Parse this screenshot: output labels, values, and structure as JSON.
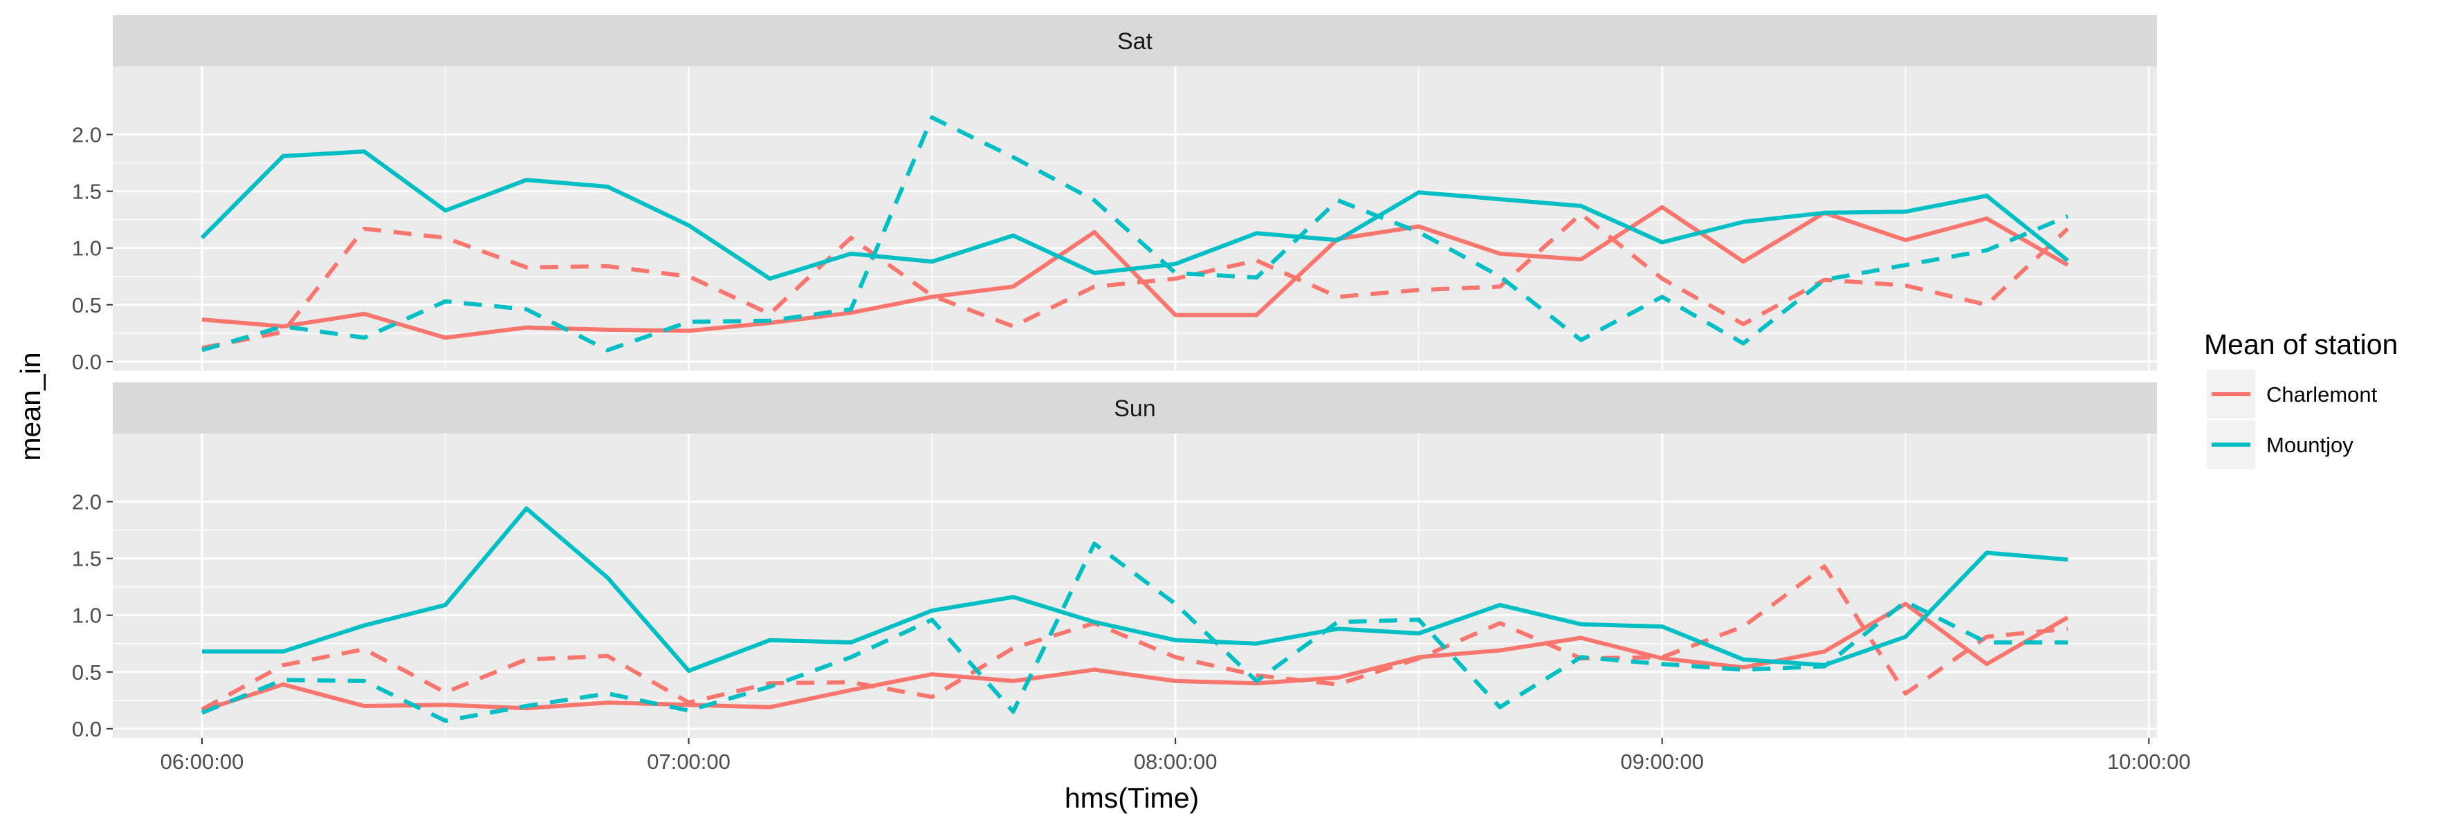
{
  "chart_data": {
    "type": "line",
    "xlabel": "hms(Time)",
    "ylabel": "mean_in",
    "xlim": [
      "05:49:00",
      "10:01:00"
    ],
    "x_ticks": [
      "06:00:00",
      "07:00:00",
      "08:00:00",
      "09:00:00",
      "10:00:00"
    ],
    "x_ticks_min": [
      360,
      420,
      480,
      540,
      600
    ],
    "ylim": [
      -0.08,
      2.6
    ],
    "y_ticks": [
      "0.0",
      "0.5",
      "1.0",
      "1.5",
      "2.0"
    ],
    "y_ticks_val": [
      0,
      0.5,
      1.0,
      1.5,
      2.0
    ],
    "grid": true,
    "legend": {
      "title": "Mean of station",
      "position": "right",
      "entries": [
        {
          "name": "Charlemont",
          "color": "#F8766D"
        },
        {
          "name": "Mountjoy",
          "color": "#00BFC4"
        }
      ]
    },
    "panels": [
      {
        "label": "Sat",
        "series": [
          {
            "station": "Charlemont",
            "linetype": "solid",
            "color": "#F8766D",
            "x": [
              "06:00:00",
              "06:10:00",
              "06:20:00",
              "06:30:00",
              "06:40:00",
              "06:50:00",
              "07:00:00",
              "07:10:00",
              "07:20:00",
              "07:30:00",
              "07:40:00",
              "07:50:00",
              "08:00:00",
              "08:10:00",
              "08:20:00",
              "08:30:00",
              "08:40:00",
              "08:50:00",
              "09:00:00",
              "09:10:00",
              "09:20:00",
              "09:30:00",
              "09:40:00",
              "09:50:00"
            ],
            "y": [
              0.37,
              0.31,
              0.42,
              0.21,
              0.3,
              0.28,
              0.27,
              0.34,
              0.43,
              0.57,
              0.66,
              1.14,
              0.41,
              0.41,
              1.08,
              1.19,
              0.95,
              0.9,
              1.36,
              0.88,
              1.31,
              1.07,
              1.26,
              0.85
            ]
          },
          {
            "station": "Charlemont",
            "linetype": "dashed",
            "color": "#F8766D",
            "x": [
              "06:00:00",
              "06:10:00",
              "06:20:00",
              "06:30:00",
              "06:40:00",
              "06:50:00",
              "07:00:00",
              "07:10:00",
              "07:20:00",
              "07:30:00",
              "07:40:00",
              "07:50:00",
              "08:00:00",
              "08:10:00",
              "08:20:00",
              "08:30:00",
              "08:40:00",
              "08:50:00",
              "09:00:00",
              "09:10:00",
              "09:20:00",
              "09:30:00",
              "09:40:00",
              "09:50:00"
            ],
            "y": [
              0.12,
              0.26,
              1.17,
              1.09,
              0.83,
              0.84,
              0.75,
              0.42,
              1.09,
              0.58,
              0.31,
              0.66,
              0.73,
              0.89,
              0.57,
              0.63,
              0.66,
              1.3,
              0.73,
              0.33,
              0.72,
              0.67,
              0.5,
              1.17
            ]
          },
          {
            "station": "Mountjoy",
            "linetype": "solid",
            "color": "#00BFC4",
            "x": [
              "06:00:00",
              "06:10:00",
              "06:20:00",
              "06:30:00",
              "06:40:00",
              "06:50:00",
              "07:00:00",
              "07:10:00",
              "07:20:00",
              "07:30:00",
              "07:40:00",
              "07:50:00",
              "08:00:00",
              "08:10:00",
              "08:20:00",
              "08:30:00",
              "08:40:00",
              "08:50:00",
              "09:00:00",
              "09:10:00",
              "09:20:00",
              "09:30:00",
              "09:40:00",
              "09:50:00"
            ],
            "y": [
              1.09,
              1.81,
              1.85,
              1.33,
              1.6,
              1.54,
              1.2,
              0.73,
              0.95,
              0.88,
              1.11,
              0.78,
              0.86,
              1.13,
              1.07,
              1.49,
              1.43,
              1.37,
              1.05,
              1.23,
              1.31,
              1.32,
              1.46,
              0.89
            ]
          },
          {
            "station": "Mountjoy",
            "linetype": "dashed",
            "color": "#00BFC4",
            "x": [
              "06:00:00",
              "06:10:00",
              "06:20:00",
              "06:30:00",
              "06:40:00",
              "06:50:00",
              "07:00:00",
              "07:10:00",
              "07:20:00",
              "07:30:00",
              "07:40:00",
              "07:50:00",
              "08:00:00",
              "08:10:00",
              "08:20:00",
              "08:30:00",
              "08:40:00",
              "08:50:00",
              "09:00:00",
              "09:10:00",
              "09:20:00",
              "09:30:00",
              "09:40:00",
              "09:50:00"
            ],
            "y": [
              0.1,
              0.31,
              0.21,
              0.53,
              0.46,
              0.1,
              0.35,
              0.36,
              0.46,
              2.15,
              1.8,
              1.42,
              0.78,
              0.74,
              1.42,
              1.14,
              0.75,
              0.19,
              0.57,
              0.16,
              0.72,
              0.85,
              0.98,
              1.28
            ]
          }
        ]
      },
      {
        "label": "Sun",
        "series": [
          {
            "station": "Charlemont",
            "linetype": "solid",
            "color": "#F8766D",
            "x": [
              "06:00:00",
              "06:10:00",
              "06:20:00",
              "06:30:00",
              "06:40:00",
              "06:50:00",
              "07:00:00",
              "07:10:00",
              "07:20:00",
              "07:30:00",
              "07:40:00",
              "07:50:00",
              "08:00:00",
              "08:10:00",
              "08:20:00",
              "08:30:00",
              "08:40:00",
              "08:50:00",
              "09:00:00",
              "09:10:00",
              "09:20:00",
              "09:30:00",
              "09:40:00",
              "09:50:00"
            ],
            "y": [
              0.16,
              0.39,
              0.2,
              0.21,
              0.18,
              0.23,
              0.21,
              0.19,
              0.34,
              0.48,
              0.42,
              0.52,
              0.42,
              0.4,
              0.45,
              0.63,
              0.69,
              0.8,
              0.62,
              0.54,
              0.68,
              1.1,
              0.57,
              0.98
            ]
          },
          {
            "station": "Charlemont",
            "linetype": "dashed",
            "color": "#F8766D",
            "x": [
              "06:00:00",
              "06:10:00",
              "06:20:00",
              "06:30:00",
              "06:40:00",
              "06:50:00",
              "07:00:00",
              "07:10:00",
              "07:20:00",
              "07:30:00",
              "07:40:00",
              "07:50:00",
              "08:00:00",
              "08:10:00",
              "08:20:00",
              "08:30:00",
              "08:40:00",
              "08:50:00",
              "09:00:00",
              "09:10:00",
              "09:20:00",
              "09:30:00",
              "09:40:00",
              "09:50:00"
            ],
            "y": [
              0.17,
              0.56,
              0.7,
              0.32,
              0.61,
              0.64,
              0.23,
              0.4,
              0.41,
              0.28,
              0.71,
              0.93,
              0.63,
              0.47,
              0.39,
              0.62,
              0.93,
              0.62,
              0.63,
              0.9,
              1.43,
              0.31,
              0.81,
              0.88
            ]
          },
          {
            "station": "Mountjoy",
            "linetype": "solid",
            "color": "#00BFC4",
            "x": [
              "06:00:00",
              "06:10:00",
              "06:20:00",
              "06:30:00",
              "06:40:00",
              "06:50:00",
              "07:00:00",
              "07:10:00",
              "07:20:00",
              "07:30:00",
              "07:40:00",
              "07:50:00",
              "08:00:00",
              "08:10:00",
              "08:20:00",
              "08:30:00",
              "08:40:00",
              "08:50:00",
              "09:00:00",
              "09:10:00",
              "09:20:00",
              "09:30:00",
              "09:40:00",
              "09:50:00"
            ],
            "y": [
              0.68,
              0.68,
              0.91,
              1.09,
              1.94,
              1.33,
              0.51,
              0.78,
              0.76,
              1.04,
              1.16,
              0.94,
              0.78,
              0.75,
              0.88,
              0.84,
              1.09,
              0.92,
              0.9,
              0.61,
              0.56,
              0.81,
              1.55,
              1.49
            ]
          },
          {
            "station": "Mountjoy",
            "linetype": "dashed",
            "color": "#00BFC4",
            "x": [
              "06:00:00",
              "06:10:00",
              "06:20:00",
              "06:30:00",
              "06:40:00",
              "06:50:00",
              "07:00:00",
              "07:10:00",
              "07:20:00",
              "07:30:00",
              "07:40:00",
              "07:50:00",
              "08:00:00",
              "08:10:00",
              "08:20:00",
              "08:30:00",
              "08:40:00",
              "08:50:00",
              "09:00:00",
              "09:10:00",
              "09:20:00",
              "09:30:00",
              "09:40:00",
              "09:50:00"
            ],
            "y": [
              0.14,
              0.43,
              0.42,
              0.07,
              0.2,
              0.31,
              0.16,
              0.37,
              0.63,
              0.96,
              0.15,
              1.63,
              1.1,
              0.42,
              0.94,
              0.96,
              0.19,
              0.63,
              0.57,
              0.52,
              0.55,
              1.12,
              0.76,
              0.76
            ]
          }
        ]
      }
    ]
  }
}
